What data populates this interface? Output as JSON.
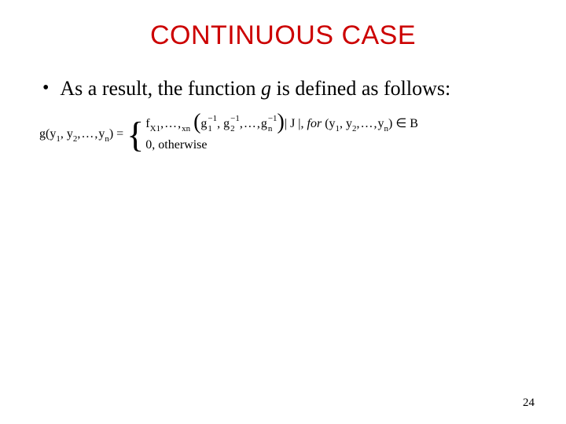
{
  "slide": {
    "title": "CONTINUOUS CASE",
    "title_color": "#cc0000",
    "bullet": {
      "marker": "•",
      "text_before": "As a result, the function ",
      "fn": "g",
      "text_after": " is defined as follows:"
    },
    "equation": {
      "lhs_g": "g",
      "lhs_open": "(",
      "y1": "y",
      "y1_sub": "1",
      "comma": ", ",
      "y2": "y",
      "y2_sub": "2",
      "ellipsis": ",…,",
      "yn": "y",
      "yn_sub": "n",
      "lhs_close": ")",
      "equals": " = ",
      "case1": {
        "f": "f",
        "X": "X",
        "X_sub": "1",
        "comma1": ",…,",
        "xn": "x",
        "xn_sub": "n",
        "big_open": "(",
        "g1": "g",
        "g1_sup": "−1",
        "g1_sub": "1",
        "sep": ", ",
        "g2": "g",
        "g2_sup": "−1",
        "g2_sub": "2",
        "ell2": ",…,",
        "gn": "g",
        "gn_sup": "−1",
        "gn_sub": "n",
        "big_close": ")",
        "jac": "| J |, ",
        "for": "for",
        "sp": " ",
        "yparen_open": "(",
        "yy1": "y",
        "yy1_sub": "1",
        "yc1": ", ",
        "yy2": "y",
        "yy2_sub": "2",
        "yell": ",…,",
        "yyn": "y",
        "yyn_sub": "n",
        "yparen_close": ")",
        "inB": " ∈ B"
      },
      "case2": "0, otherwise"
    },
    "page_number": "24",
    "colors": {
      "text": "#000000",
      "background": "#ffffff"
    },
    "fonts": {
      "title_family": "Arial",
      "title_size_pt": 26,
      "body_family": "Times New Roman",
      "body_size_pt": 20,
      "equation_size_pt": 12
    }
  }
}
